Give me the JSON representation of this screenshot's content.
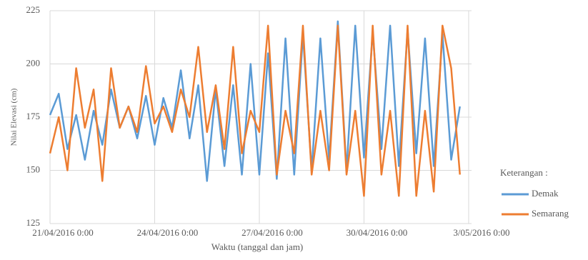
{
  "chart_data": {
    "type": "line",
    "x_label": "Waktu (tanggal dan jam)",
    "y_label": "Nilai Elevasi (cm)",
    "legend_title": "Keterangan :",
    "x": [
      0,
      6,
      12,
      18,
      24,
      30,
      36,
      42,
      48,
      54,
      60,
      66,
      72,
      78,
      84,
      90,
      96,
      102,
      108,
      114,
      120,
      126,
      132,
      138,
      144,
      150,
      156,
      162,
      168,
      174,
      180,
      186,
      192,
      198,
      204,
      210,
      216,
      222,
      228,
      234,
      240,
      246,
      252,
      258,
      264,
      270,
      276,
      282
    ],
    "series": [
      {
        "name": "Demak",
        "color": "#5b9bd5",
        "values": [
          176,
          186,
          160,
          176,
          155,
          178,
          162,
          188,
          170,
          180,
          165,
          185,
          162,
          184,
          170,
          197,
          165,
          190,
          145,
          188,
          152,
          190,
          148,
          200,
          148,
          205,
          146,
          212,
          148,
          214,
          150,
          212,
          155,
          220,
          150,
          218,
          156,
          215,
          160,
          218,
          152,
          216,
          158,
          212,
          152,
          214,
          155,
          180
        ]
      },
      {
        "name": "Semarang",
        "color": "#ed7d31",
        "values": [
          158,
          175,
          150,
          198,
          170,
          188,
          145,
          198,
          170,
          180,
          168,
          199,
          172,
          180,
          168,
          188,
          175,
          208,
          168,
          190,
          160,
          208,
          158,
          178,
          168,
          218,
          148,
          178,
          158,
          218,
          148,
          178,
          150,
          218,
          148,
          178,
          138,
          218,
          148,
          178,
          138,
          218,
          138,
          178,
          140,
          218,
          198,
          148
        ]
      }
    ],
    "xlim": [
      0,
      290
    ],
    "xticks": [
      {
        "value": 0,
        "label": "21/04/2016 0:00"
      },
      {
        "value": 72,
        "label": "24/04/2016 0:00"
      },
      {
        "value": 144,
        "label": "27/04/2016 0:00"
      },
      {
        "value": 216,
        "label": "30/04/2016 0:00"
      },
      {
        "value": 288,
        "label": "3/05/2016 0:00"
      }
    ],
    "ylim": [
      125,
      225
    ],
    "yticks": [
      125,
      150,
      175,
      200,
      225
    ],
    "grid": true,
    "legend": "right"
  }
}
